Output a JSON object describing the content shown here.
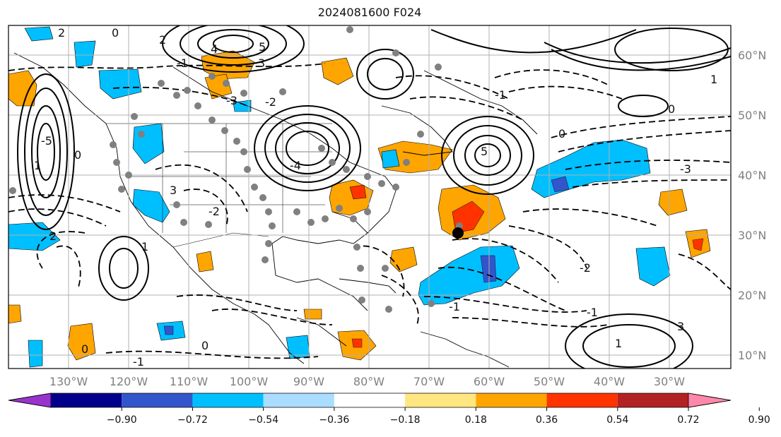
{
  "title": "2024081600 F024",
  "map": {
    "lon_labels": [
      "130°W",
      "120°W",
      "110°W",
      "100°W",
      "90°W",
      "80°W",
      "70°W",
      "60°W",
      "50°W",
      "40°W",
      "30°W"
    ],
    "lat_labels": [
      "60°N",
      "50°N",
      "40°N",
      "30°N",
      "20°N",
      "10°N"
    ],
    "axis_label_color": "#808080"
  },
  "colorbar": {
    "ticks": [
      "−0.90",
      "−0.72",
      "−0.54",
      "−0.36",
      "−0.18",
      "0.18",
      "0.36",
      "0.54",
      "0.72",
      "0.90"
    ],
    "colors": [
      "#9933cc",
      "#00008b",
      "#3355cc",
      "#00bfff",
      "#aaddff",
      "#ffffff",
      "#ffe680",
      "#ffa500",
      "#ff3300",
      "#b22222",
      "#ff88aa"
    ],
    "extend": "both"
  },
  "contour_labels": [
    {
      "text": "2"
    },
    {
      "text": "0"
    },
    {
      "text": "4"
    },
    {
      "text": "5"
    },
    {
      "text": "-1"
    },
    {
      "text": "3"
    },
    {
      "text": "-3"
    },
    {
      "text": "-2"
    },
    {
      "text": "1"
    },
    {
      "text": "0"
    },
    {
      "text": "-5"
    },
    {
      "text": "2"
    },
    {
      "text": "-4"
    },
    {
      "text": "3"
    },
    {
      "text": "5"
    },
    {
      "text": "0"
    },
    {
      "text": "-1"
    },
    {
      "text": "1"
    },
    {
      "text": "-3"
    },
    {
      "text": "0"
    },
    {
      "text": "1"
    },
    {
      "text": "-2"
    },
    {
      "text": "-1"
    },
    {
      "text": "0"
    },
    {
      "text": "2"
    },
    {
      "text": "-1"
    },
    {
      "text": "0"
    },
    {
      "text": "1"
    },
    {
      "text": "-2"
    },
    {
      "text": "3"
    },
    {
      "text": "-1"
    }
  ]
}
